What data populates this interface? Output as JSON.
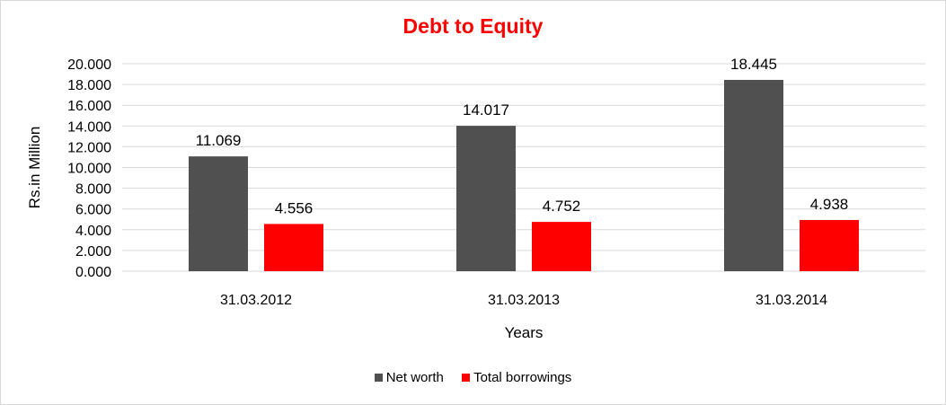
{
  "chart_data": {
    "type": "bar",
    "title": "Debt to Equity",
    "categories": [
      "31.03.2012",
      "31.03.2013",
      "31.03.2014"
    ],
    "series": [
      {
        "name": "Net worth",
        "values": [
          11.069,
          14.017,
          18.445
        ],
        "labels": [
          "11.069",
          "14.017",
          "18.445"
        ],
        "color": "#505050"
      },
      {
        "name": "Total borrowings",
        "values": [
          4.556,
          4.752,
          4.938
        ],
        "labels": [
          "4.556",
          "4.752",
          "4.938"
        ],
        "color": "#ff0000"
      }
    ],
    "xlabel": "Years",
    "ylabel": "Rs.in Million",
    "ylim": [
      0,
      20
    ],
    "yticks": [
      0,
      2,
      4,
      6,
      8,
      10,
      12,
      14,
      16,
      18,
      20
    ],
    "ytick_labels": [
      "0.000",
      "2.000",
      "4.000",
      "6.000",
      "8.000",
      "10.000",
      "12.000",
      "14.000",
      "16.000",
      "18.000",
      "20.000"
    ],
    "title_color": "#ff0000",
    "grid": true,
    "legend_position": "bottom"
  }
}
